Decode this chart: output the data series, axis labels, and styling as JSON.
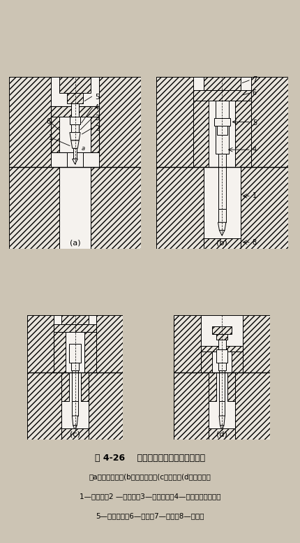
{
  "title_line1": "图 4-26    钛合金管材穿孔挤压工艺过程",
  "title_line2": "（a）穿孔开始；(b）穿孔结束；(c）挤压；(d）挤压结束",
  "title_line3": "1—导向锥；2 —工作锥；3—前定径带；4—穿孔针工作部分；",
  "title_line4": "5—后定径带；6—坯料；7—针座；8—挤压模",
  "bg_color": "#ccc4b4",
  "hatch_color": "#333333",
  "line_color": "#000000",
  "label_a": "(a)",
  "label_b": "(b)",
  "label_c": "(c)",
  "label_d": "(d)",
  "hatch_fc": "#e8e4dc"
}
